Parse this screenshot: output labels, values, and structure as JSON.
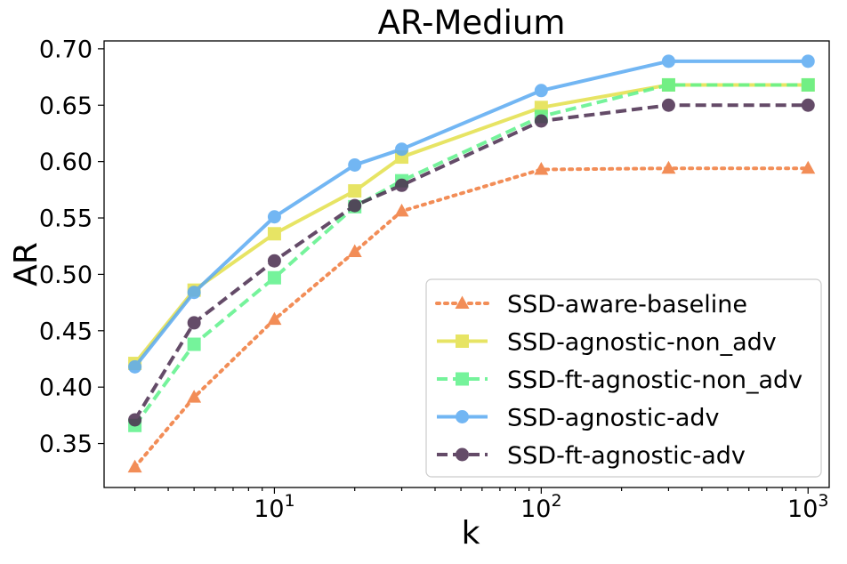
{
  "chart_data": {
    "type": "line",
    "title": "AR-Medium",
    "xlabel": "k",
    "ylabel": "AR",
    "xscale": "log",
    "xlim": [
      2.3,
      1200
    ],
    "ylim": [
      0.311,
      0.707
    ],
    "grid": false,
    "legend_position": "lower-right",
    "x_ticks": [
      {
        "value": 10,
        "base": "10",
        "exp": "1"
      },
      {
        "value": 100,
        "base": "10",
        "exp": "2"
      },
      {
        "value": 1000,
        "base": "10",
        "exp": "3"
      }
    ],
    "y_ticks": [
      {
        "value": 0.35,
        "label": "0.35"
      },
      {
        "value": 0.4,
        "label": "0.40"
      },
      {
        "value": 0.45,
        "label": "0.45"
      },
      {
        "value": 0.5,
        "label": "0.50"
      },
      {
        "value": 0.55,
        "label": "0.55"
      },
      {
        "value": 0.6,
        "label": "0.60"
      },
      {
        "value": 0.65,
        "label": "0.65"
      },
      {
        "value": 0.7,
        "label": "0.70"
      }
    ],
    "x": [
      3,
      5,
      10,
      20,
      30,
      100,
      300,
      1000
    ],
    "series": [
      {
        "name": "SSD-aware-baseline",
        "color": "#f07a3a",
        "linestyle": "dotted",
        "marker": "triangle",
        "values": [
          0.329,
          0.391,
          0.46,
          0.52,
          0.556,
          0.593,
          0.594,
          0.594
        ]
      },
      {
        "name": "SSD-agnostic-non_adv",
        "color": "#e3e04a",
        "linestyle": "solid",
        "marker": "square",
        "values": [
          0.421,
          0.486,
          0.536,
          0.574,
          0.604,
          0.648,
          0.668,
          0.668
        ]
      },
      {
        "name": "SSD-ft-agnostic-non_adv",
        "color": "#5ef28a",
        "linestyle": "dashed",
        "marker": "square",
        "values": [
          0.366,
          0.438,
          0.497,
          0.56,
          0.583,
          0.64,
          0.668,
          0.668
        ]
      },
      {
        "name": "SSD-agnostic-adv",
        "color": "#5aaaf2",
        "linestyle": "solid",
        "marker": "circle",
        "values": [
          0.418,
          0.484,
          0.551,
          0.597,
          0.611,
          0.663,
          0.689,
          0.689
        ]
      },
      {
        "name": "SSD-ft-agnostic-adv",
        "color": "#4a2c4e",
        "linestyle": "dashed",
        "marker": "circle",
        "values": [
          0.371,
          0.457,
          0.512,
          0.561,
          0.579,
          0.636,
          0.65,
          0.65
        ]
      }
    ]
  }
}
